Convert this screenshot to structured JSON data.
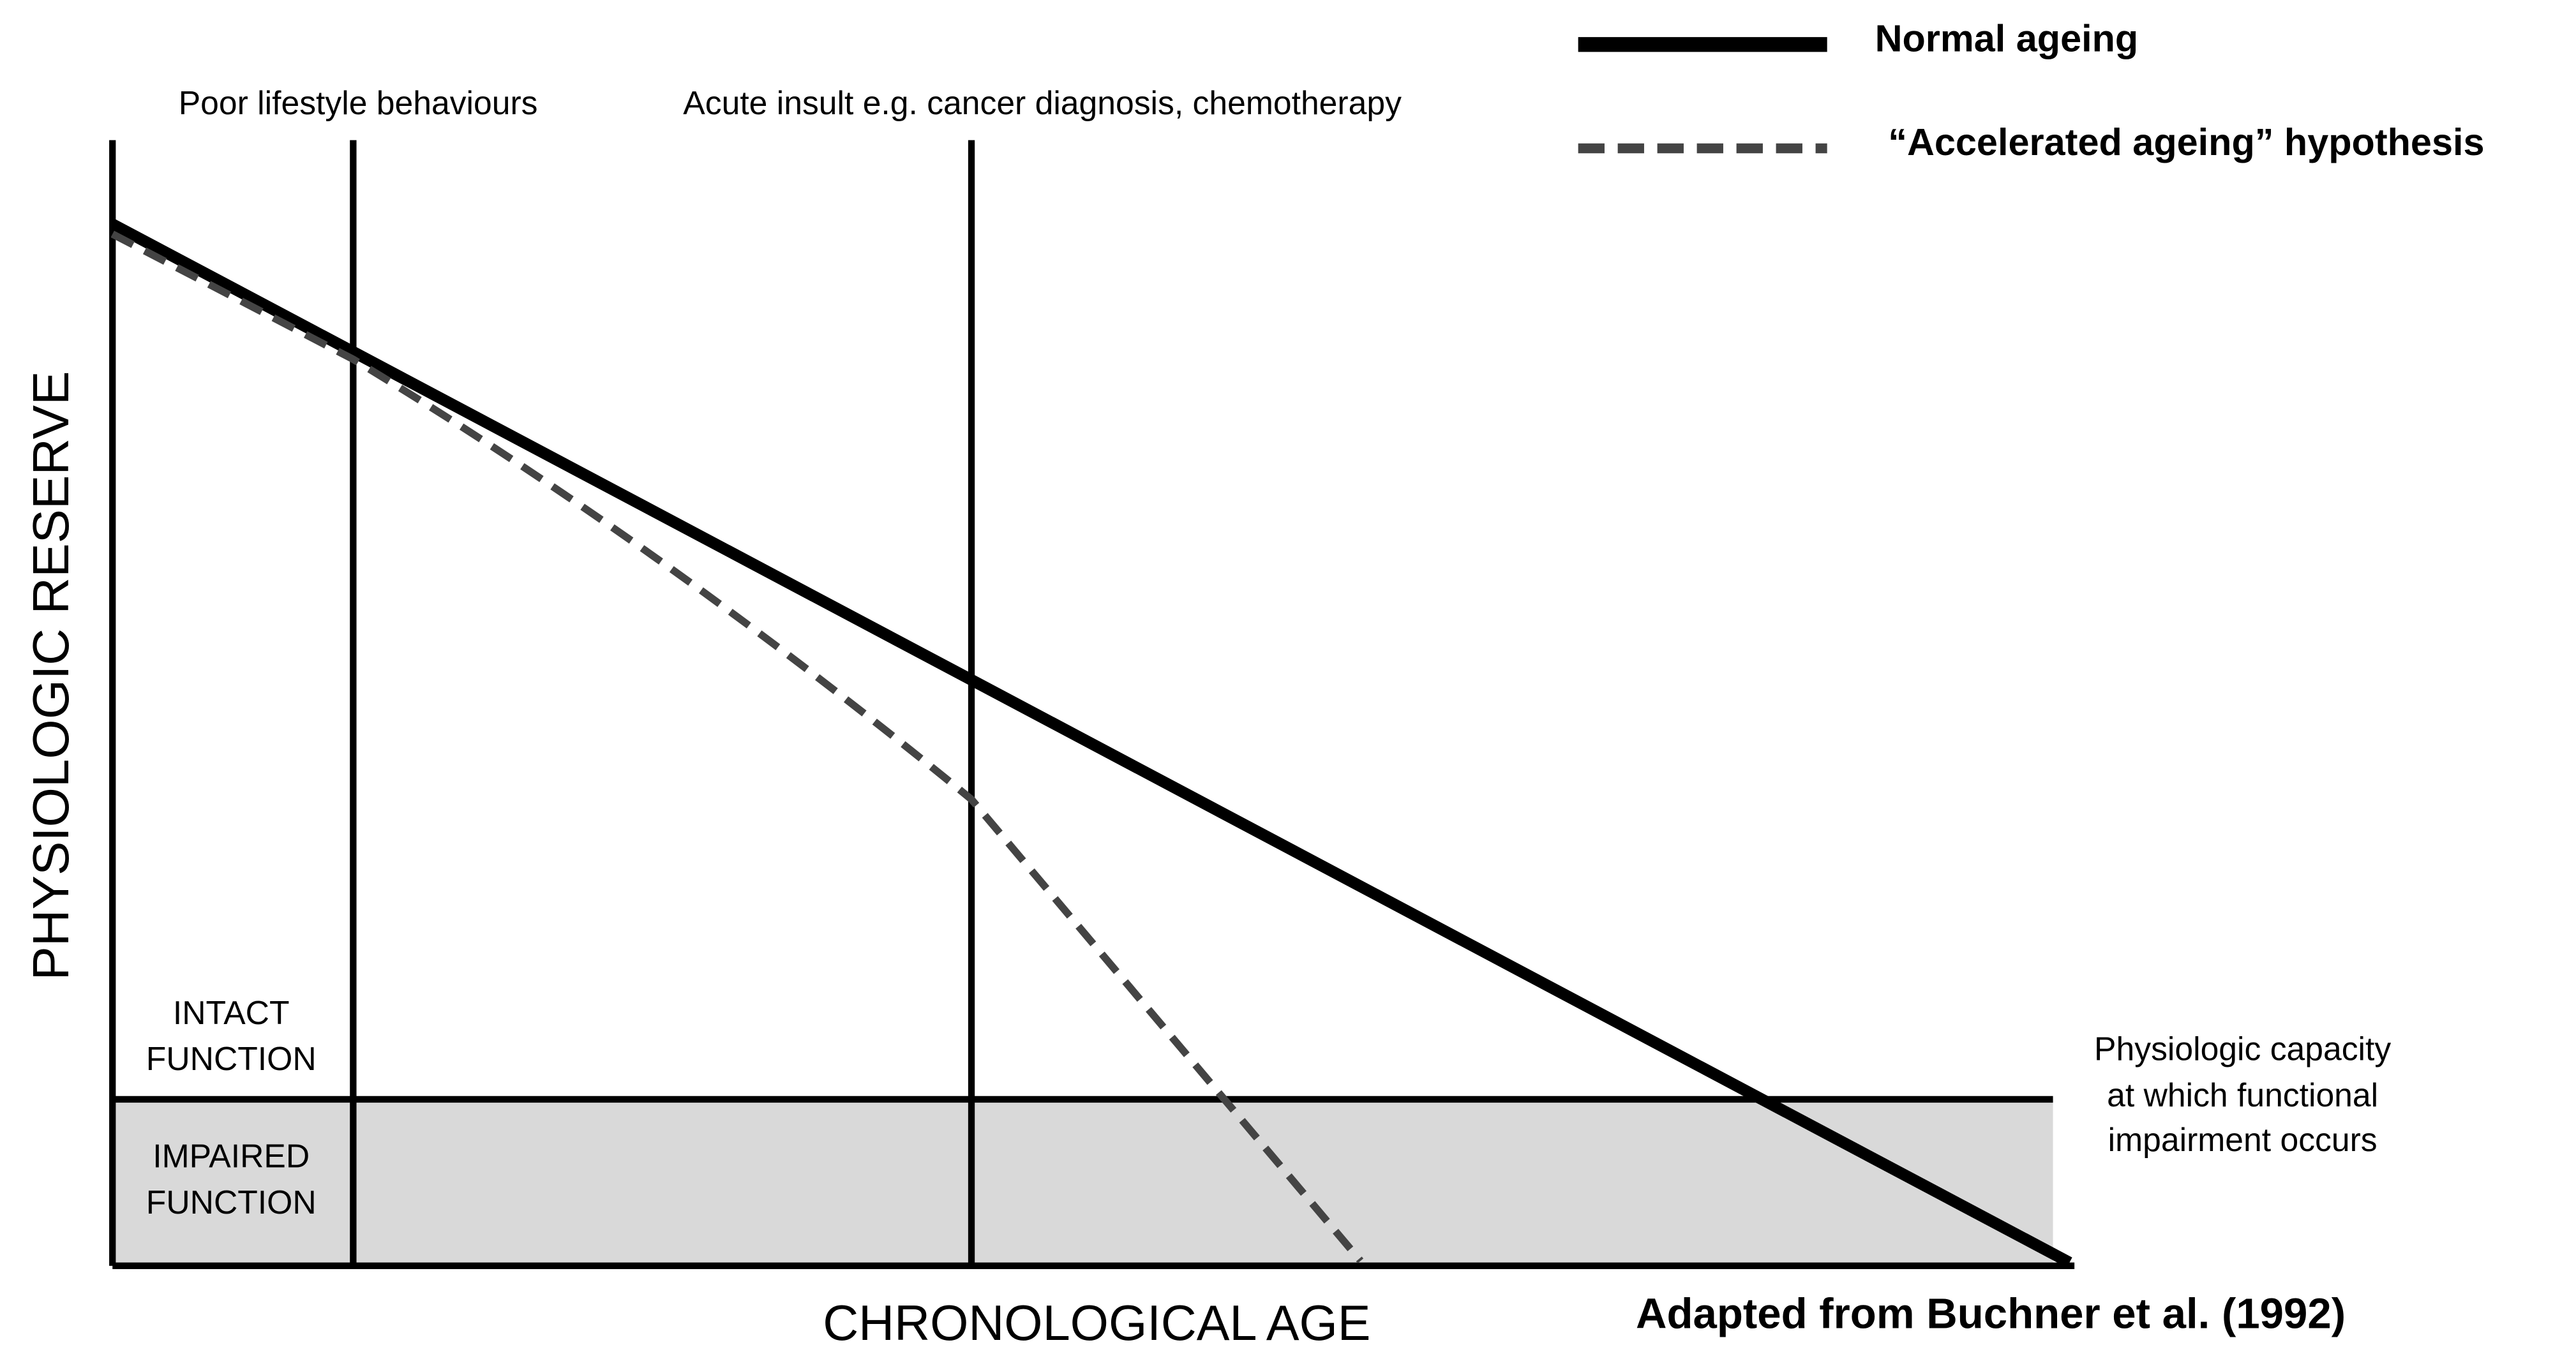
{
  "legend": {
    "items": [
      {
        "label": "Normal ageing"
      },
      {
        "label": "“Accelerated ageing” hypothesis"
      }
    ]
  },
  "events": [
    {
      "label": "Poor lifestyle behaviours"
    },
    {
      "label": "Acute insult e.g. cancer diagnosis, chemotherapy"
    }
  ],
  "axes": {
    "y_label": "PHYSIOLOGIC RESERVE",
    "x_label": "CHRONOLOGICAL AGE"
  },
  "zones": {
    "intact": [
      "INTACT",
      "FUNCTION"
    ],
    "impaired": [
      "IMPAIRED",
      "FUNCTION"
    ]
  },
  "threshold_label": [
    "Physiologic capacity",
    "at which functional",
    "impairment occurs"
  ],
  "source": "Adapted from Buchner et al. (1992)"
}
